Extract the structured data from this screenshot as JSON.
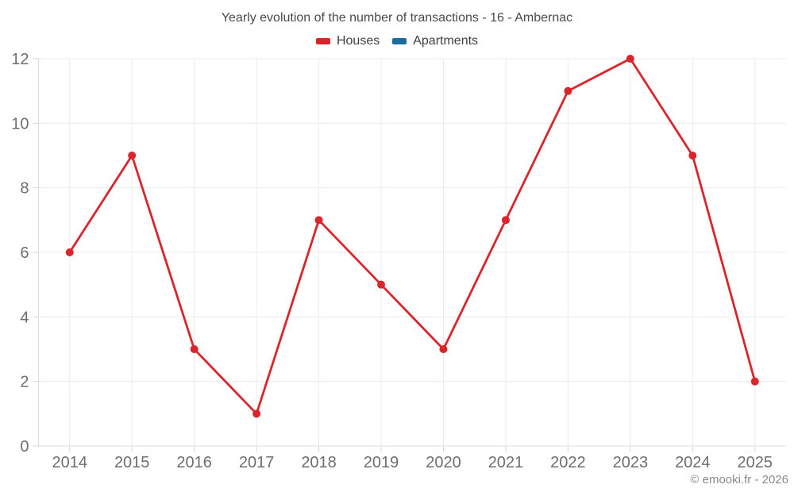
{
  "title": "Yearly evolution of the number of transactions - 16 - Ambernac",
  "legend": {
    "items": [
      {
        "label": "Houses",
        "color": "#d9262d"
      },
      {
        "label": "Apartments",
        "color": "#1a6d9e"
      }
    ]
  },
  "copyright": "© emooki.fr - 2026",
  "colors": {
    "houses_red": "#d9262d",
    "apartments_blue": "#1a6d9e",
    "gridline": "#ececec",
    "axis_line": "#dcdcdc",
    "tick_mark": "#d4d4d4",
    "axis_label": "#6e6e6e"
  },
  "chart_data": {
    "type": "line",
    "title": "Yearly evolution of the number of transactions - 16 - Ambernac",
    "categories": [
      "2014",
      "2015",
      "2016",
      "2017",
      "2018",
      "2019",
      "2020",
      "2021",
      "2022",
      "2023",
      "2024",
      "2025"
    ],
    "series": [
      {
        "name": "Houses",
        "color": "#d9262d",
        "values": [
          6,
          9,
          3,
          1,
          7,
          5,
          3,
          7,
          11,
          12,
          9,
          2
        ]
      },
      {
        "name": "Apartments",
        "color": "#1a6d9e",
        "values": []
      }
    ],
    "xlabel": "",
    "ylabel": "",
    "ylim": [
      0,
      12
    ],
    "yticks": [
      0,
      2,
      4,
      6,
      8,
      10,
      12
    ],
    "grid": true,
    "legend_position": "top",
    "marker": "circle"
  }
}
